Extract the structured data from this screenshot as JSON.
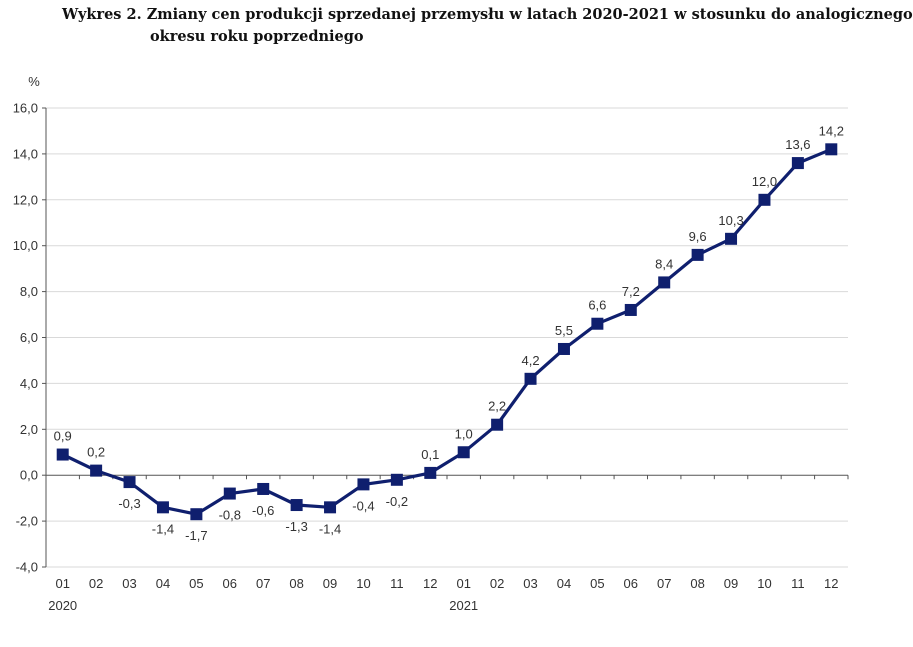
{
  "title_line1": "Wykres 2. Zmiany cen produkcji sprzedanej przemysłu w latach 2020-2021 w stosunku do analogicznego",
  "title_line2": "okresu roku poprzedniego",
  "chart_data": {
    "type": "line",
    "ylabel": "%",
    "ylim": [
      -4.0,
      16.0
    ],
    "yticks": [
      "-4,0",
      "-2,0",
      "0,0",
      "2,0",
      "4,0",
      "6,0",
      "8,0",
      "10,0",
      "12,0",
      "14,0",
      "16,0"
    ],
    "categories": [
      "01",
      "02",
      "03",
      "04",
      "05",
      "06",
      "07",
      "08",
      "09",
      "10",
      "11",
      "12",
      "01",
      "02",
      "03",
      "04",
      "05",
      "06",
      "07",
      "08",
      "09",
      "10",
      "11",
      "12"
    ],
    "year_labels": [
      {
        "index": 0,
        "label": "2020"
      },
      {
        "index": 12,
        "label": "2021"
      }
    ],
    "values": [
      0.9,
      0.2,
      -0.3,
      -1.4,
      -1.7,
      -0.8,
      -0.6,
      -1.3,
      -1.4,
      -0.4,
      -0.2,
      0.1,
      1.0,
      2.2,
      4.2,
      5.5,
      6.6,
      7.2,
      8.4,
      9.6,
      10.3,
      12.0,
      13.6,
      14.2
    ],
    "data_labels": [
      "0,9",
      "0,2",
      "-0,3",
      "-1,4",
      "-1,7",
      "-0,8",
      "-0,6",
      "-1,3",
      "-1,4",
      "-0,4",
      "-0,2",
      "0,1",
      "1,0",
      "2,2",
      "4,2",
      "5,5",
      "6,6",
      "7,2",
      "8,4",
      "9,6",
      "10,3",
      "12,0",
      "13,6",
      "14,2"
    ],
    "label_positions": [
      "above",
      "above",
      "below",
      "below",
      "below",
      "below",
      "below",
      "below",
      "below",
      "below",
      "below",
      "above",
      "above",
      "above",
      "above",
      "above",
      "above",
      "above",
      "above",
      "above",
      "above",
      "above",
      "above",
      "above"
    ],
    "grid": true,
    "line_color": "#0f1f6e",
    "marker_color": "#0f1f6e"
  }
}
